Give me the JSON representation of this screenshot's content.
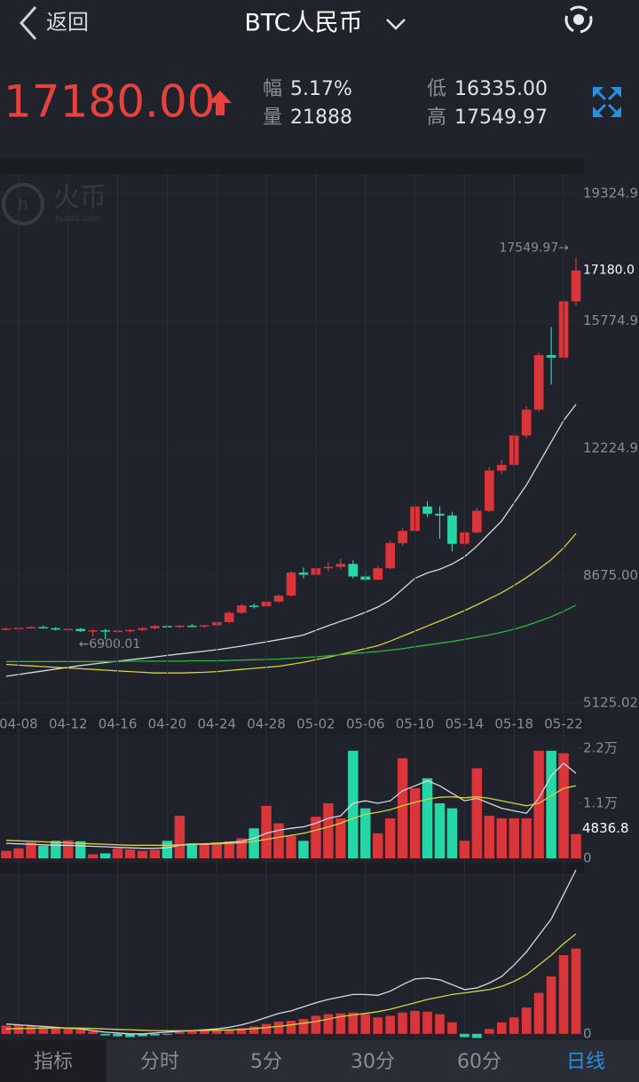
{
  "header": {
    "back": "返回",
    "title": "BTC人民币"
  },
  "quote": {
    "price": "17180.00",
    "stats": [
      {
        "label": "幅",
        "value": "5.17%"
      },
      {
        "label": "量",
        "value": "21888"
      },
      {
        "label": "低",
        "value": "16335.00"
      },
      {
        "label": "高",
        "value": "17549.97"
      }
    ]
  },
  "watermark": {
    "name": "火币",
    "site": "huobi.com"
  },
  "chart_data": [
    {
      "type": "candlestick",
      "categories": [
        null,
        "04-08",
        null,
        null,
        null,
        "04-12",
        null,
        null,
        null,
        "04-16",
        null,
        null,
        null,
        "04-20",
        null,
        null,
        null,
        "04-24",
        null,
        null,
        null,
        "04-28",
        null,
        null,
        null,
        "05-02",
        null,
        null,
        null,
        "05-06",
        null,
        null,
        null,
        "05-10",
        null,
        null,
        null,
        "05-14",
        null,
        null,
        null,
        "05-18",
        null,
        null,
        null,
        "05-22",
        null
      ],
      "open": [
        7180,
        7200,
        7220,
        7240,
        7210,
        7170,
        7190,
        7130,
        7150,
        7120,
        7140,
        7160,
        7210,
        7270,
        7250,
        7280,
        7260,
        7290,
        7380,
        7640,
        7840,
        7820,
        7950,
        8120,
        8760,
        8700,
        8880,
        8920,
        9000,
        8650,
        8560,
        8880,
        9580,
        9920,
        10600,
        10400,
        10350,
        9560,
        9880,
        10480,
        11600,
        11760,
        12580,
        13300,
        14820,
        14750,
        16320
      ],
      "high": [
        7230,
        7240,
        7260,
        7290,
        7240,
        7210,
        7220,
        7180,
        7190,
        7170,
        7180,
        7230,
        7300,
        7320,
        7290,
        7330,
        7300,
        7400,
        7680,
        7880,
        7900,
        7980,
        8150,
        8800,
        8900,
        8950,
        9050,
        9150,
        9100,
        8800,
        8950,
        9650,
        10000,
        10700,
        10750,
        10600,
        10450,
        9950,
        10550,
        11700,
        11900,
        12650,
        13400,
        14900,
        15600,
        16400,
        17549.97
      ],
      "low": [
        7150,
        7170,
        7190,
        7200,
        7150,
        7120,
        7100,
        6980,
        6900.01,
        7080,
        7090,
        7130,
        7180,
        7220,
        7210,
        7240,
        7220,
        7260,
        7350,
        7600,
        7760,
        7790,
        7920,
        8100,
        8600,
        8650,
        8800,
        8850,
        8600,
        8500,
        8540,
        8850,
        9500,
        9880,
        10300,
        9700,
        9350,
        9500,
        9850,
        10450,
        11500,
        11700,
        12500,
        13250,
        14000,
        14700,
        16200
      ],
      "close": [
        7200,
        7220,
        7240,
        7210,
        7170,
        7190,
        7130,
        7150,
        7120,
        7140,
        7160,
        7210,
        7270,
        7250,
        7280,
        7260,
        7290,
        7380,
        7640,
        7840,
        7820,
        7950,
        8120,
        8760,
        8700,
        8880,
        8920,
        9000,
        8650,
        8560,
        8880,
        9580,
        9920,
        10600,
        10400,
        10350,
        9560,
        9880,
        10480,
        11600,
        11760,
        12580,
        13300,
        14820,
        14750,
        16320,
        17180
      ],
      "series": [
        {
          "color": "#d8d8e0",
          "values": [
            5870,
            5920,
            5970,
            6020,
            6070,
            6120,
            6170,
            6210,
            6250,
            6290,
            6330,
            6370,
            6410,
            6450,
            6490,
            6530,
            6570,
            6610,
            6660,
            6710,
            6770,
            6830,
            6890,
            6950,
            7020,
            7150,
            7280,
            7400,
            7520,
            7650,
            7800,
            8000,
            8300,
            8600,
            8750,
            8850,
            9000,
            9200,
            9500,
            9850,
            10200,
            10700,
            11200,
            11800,
            12400,
            13000,
            13450
          ]
        },
        {
          "color": "#d6d23a",
          "values": [
            6200,
            6180,
            6160,
            6140,
            6120,
            6100,
            6080,
            6060,
            6040,
            6020,
            6000,
            5980,
            5960,
            5960,
            5960,
            5970,
            5980,
            6000,
            6030,
            6060,
            6090,
            6120,
            6150,
            6200,
            6260,
            6330,
            6400,
            6480,
            6560,
            6640,
            6720,
            6850,
            6990,
            7130,
            7270,
            7410,
            7550,
            7700,
            7860,
            8030,
            8200,
            8400,
            8620,
            8860,
            9120,
            9450,
            9850
          ]
        },
        {
          "color": "#2fb63c",
          "values": [
            6280,
            6280,
            6280,
            6280,
            6280,
            6280,
            6280,
            6280,
            6280,
            6280,
            6290,
            6290,
            6290,
            6290,
            6290,
            6300,
            6300,
            6300,
            6310,
            6320,
            6330,
            6340,
            6350,
            6370,
            6390,
            6410,
            6440,
            6470,
            6500,
            6530,
            6560,
            6600,
            6640,
            6690,
            6740,
            6790,
            6840,
            6900,
            6960,
            7020,
            7100,
            7180,
            7280,
            7400,
            7530,
            7680,
            7850
          ]
        }
      ],
      "ylim": [
        5125.02,
        19324.9
      ],
      "yticks": [
        19324.9,
        15774.9,
        12224.9,
        {
          "value": 8675,
          "label": "8675.00"
        },
        5125.02
      ],
      "grid": true,
      "up_color": "#d9363b",
      "down_color": "#27d6a6",
      "high_label": "17549.97→",
      "low_label": "←6900.01",
      "last_label": "17180.0"
    },
    {
      "type": "bar",
      "values": [
        1500,
        2000,
        3200,
        2500,
        3500,
        3600,
        3400,
        800,
        1000,
        2000,
        1800,
        1500,
        1700,
        3500,
        8500,
        3000,
        3000,
        3200,
        3400,
        4000,
        6000,
        10500,
        7000,
        4500,
        3500,
        8300,
        11000,
        8000,
        21500,
        10000,
        5000,
        8000,
        20000,
        14000,
        16000,
        11000,
        10000,
        3500,
        18000,
        8500,
        8000,
        8000,
        8000,
        21500,
        21500,
        21000,
        4836.8
      ],
      "series": [
        {
          "color": "#d8d8e0",
          "values": [
            3000,
            2900,
            2800,
            2700,
            2600,
            2600,
            2500,
            2400,
            2300,
            2200,
            2100,
            2000,
            2000,
            2100,
            2600,
            2800,
            2900,
            3000,
            3200,
            3400,
            4000,
            5000,
            5600,
            6000,
            6300,
            7000,
            8000,
            8500,
            11000,
            11500,
            11000,
            11500,
            13500,
            14500,
            15500,
            14500,
            13000,
            11500,
            12000,
            11000,
            10000,
            9500,
            9000,
            12000,
            16500,
            19000,
            17000
          ]
        },
        {
          "color": "#d6d23a",
          "values": [
            3600,
            3500,
            3400,
            3300,
            3200,
            3100,
            3000,
            2900,
            2800,
            2700,
            2600,
            2600,
            2600,
            2600,
            2700,
            2800,
            2800,
            2900,
            3000,
            3100,
            3400,
            3800,
            4200,
            4600,
            5000,
            5600,
            6300,
            7000,
            8000,
            8800,
            9200,
            9700,
            10500,
            11200,
            11800,
            12200,
            12300,
            12100,
            12300,
            12000,
            11500,
            11000,
            10500,
            11000,
            12500,
            14000,
            14500
          ]
        }
      ],
      "ylim": [
        0,
        22000
      ],
      "yticks": [
        {
          "value": 22000,
          "label": "2.2万"
        },
        {
          "value": 11000,
          "label": "1.1万"
        },
        0
      ],
      "up_color": "#d9363b",
      "down_color": "#27d6a6"
    },
    {
      "type": "bar",
      "values": [
        50,
        55,
        50,
        45,
        40,
        35,
        25,
        15,
        -10,
        -15,
        -20,
        -15,
        -10,
        -5,
        10,
        15,
        20,
        20,
        25,
        35,
        45,
        60,
        75,
        80,
        90,
        110,
        120,
        125,
        130,
        120,
        100,
        110,
        130,
        140,
        135,
        120,
        70,
        -20,
        -25,
        30,
        70,
        100,
        160,
        250,
        350,
        480,
        520
      ],
      "series": [
        {
          "color": "#d8d8e0",
          "values": [
            60,
            55,
            50,
            45,
            40,
            35,
            30,
            20,
            10,
            5,
            0,
            0,
            5,
            10,
            15,
            20,
            25,
            30,
            40,
            55,
            75,
            100,
            125,
            140,
            165,
            190,
            210,
            225,
            240,
            240,
            235,
            260,
            300,
            335,
            340,
            330,
            300,
            270,
            280,
            310,
            350,
            420,
            500,
            600,
            700,
            850,
            1000
          ]
        },
        {
          "color": "#d6d23a",
          "values": [
            30,
            32,
            34,
            35,
            36,
            36,
            35,
            33,
            30,
            27,
            25,
            22,
            20,
            19,
            19,
            20,
            21,
            22,
            24,
            27,
            32,
            38,
            45,
            55,
            65,
            75,
            90,
            105,
            115,
            125,
            135,
            150,
            170,
            190,
            210,
            225,
            240,
            250,
            260,
            270,
            290,
            320,
            360,
            420,
            480,
            550,
            610
          ]
        }
      ],
      "ylim": [
        -50,
        1000
      ],
      "yticks": [
        0
      ],
      "up_color": "#d9363b",
      "down_color": "#27d6a6"
    }
  ],
  "tabs": {
    "items": [
      "指标",
      "分时",
      "5分",
      "30分",
      "60分",
      "日线"
    ],
    "active": 5
  }
}
